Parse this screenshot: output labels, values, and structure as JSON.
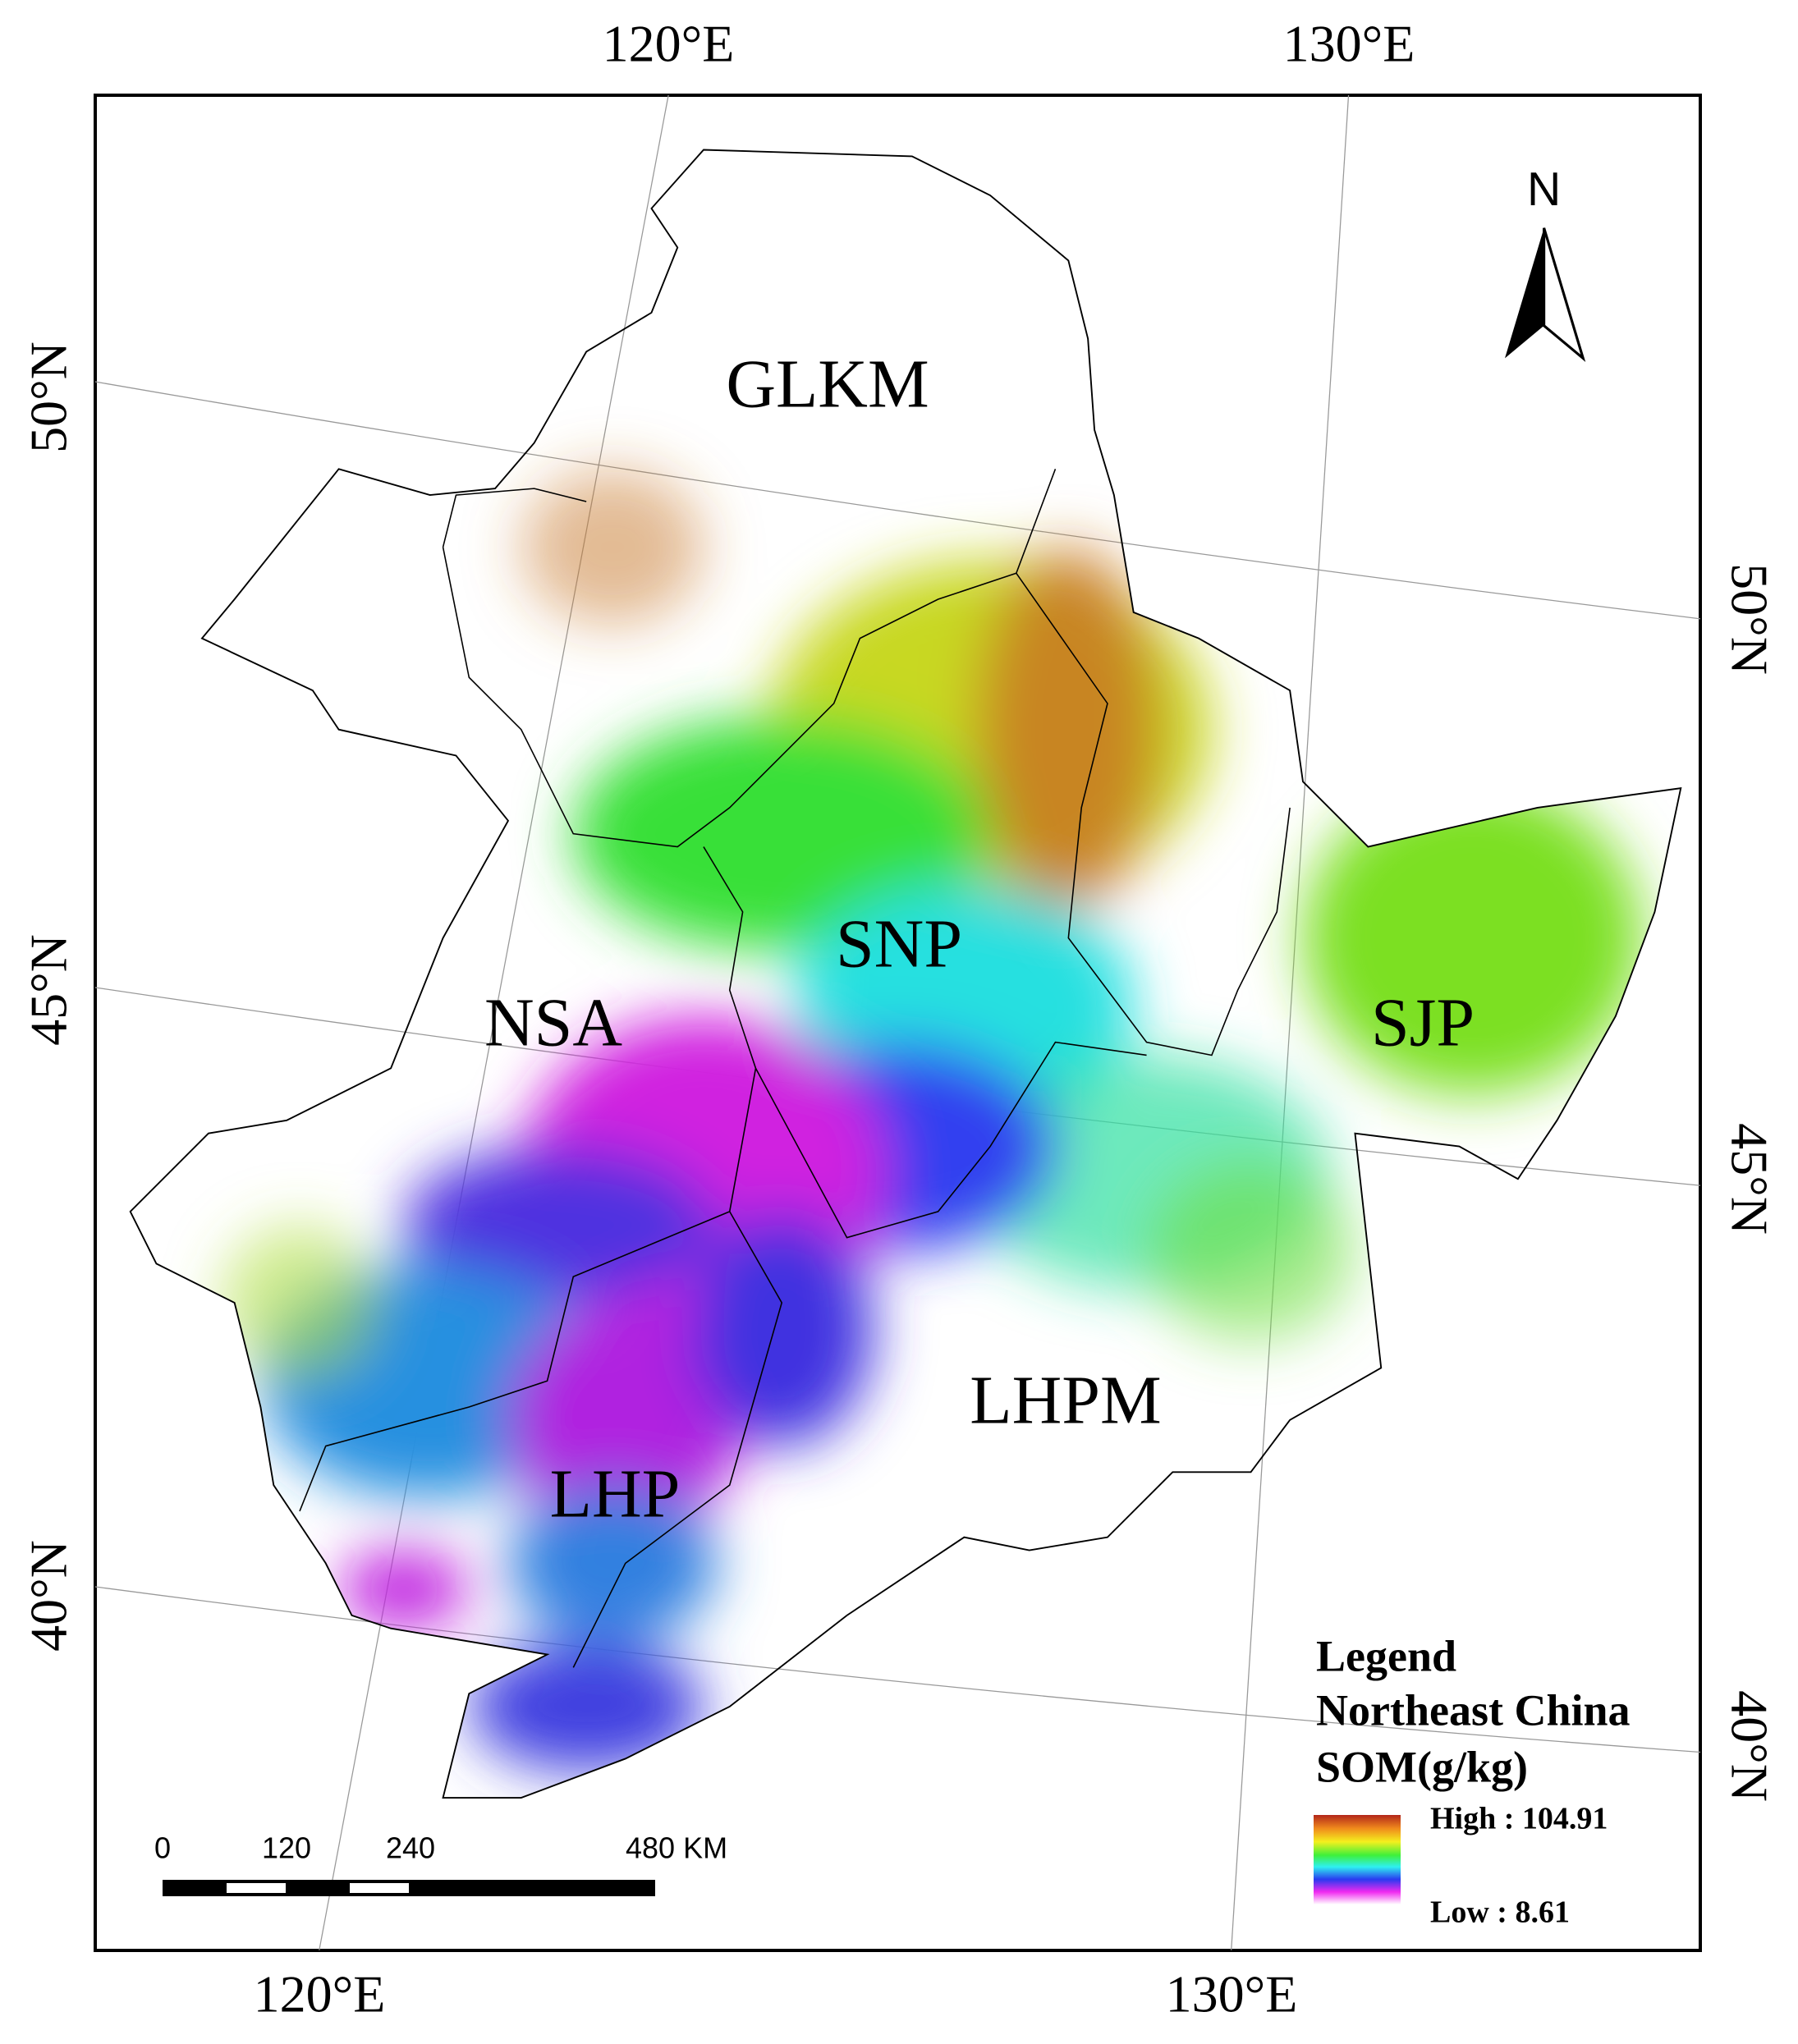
{
  "map": {
    "graticule": {
      "top": [
        "120°E",
        "130°E"
      ],
      "bottom": [
        "120°E",
        "130°E"
      ],
      "left": [
        "50°N",
        "45°N",
        "40°N"
      ],
      "right": [
        "50°N",
        "45°N",
        "40°N"
      ]
    },
    "north": "N",
    "regions": [
      "GLKM",
      "SNP",
      "NSA",
      "SJP",
      "LHPM",
      "LHP"
    ],
    "legend": {
      "title": "Legend",
      "subtitle": "Northeast China",
      "variable": "SOM(g/kg)",
      "high": "High : 104.91",
      "low": "Low : 8.61"
    },
    "scale_bar": [
      "0",
      "120",
      "240",
      "480 KM"
    ]
  }
}
